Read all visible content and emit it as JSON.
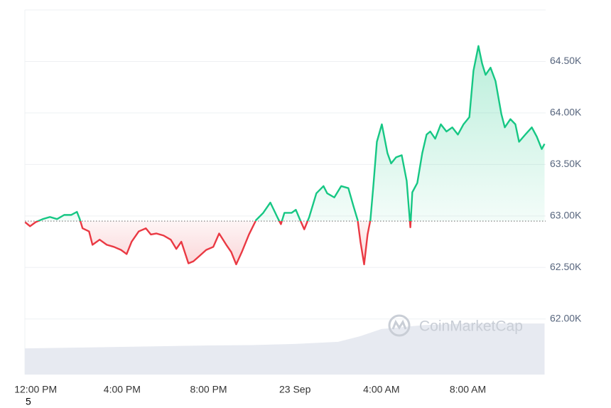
{
  "chart_data": {
    "type": "baseline_line",
    "x": [
      -0.49,
      -0.26,
      0,
      0.33,
      0.66,
      0.99,
      1.32,
      1.64,
      1.91,
      2.04,
      2.17,
      2.47,
      2.63,
      2.96,
      3.29,
      3.62,
      3.95,
      4.21,
      4.44,
      4.77,
      5.1,
      5.33,
      5.59,
      5.92,
      6.25,
      6.51,
      6.74,
      7.07,
      7.3,
      7.57,
      7.89,
      8.22,
      8.49,
      8.82,
      9.05,
      9.28,
      9.54,
      9.87,
      10.2,
      10.53,
      10.86,
      11.18,
      11.35,
      11.51,
      11.84,
      12.04,
      12.24,
      12.43,
      12.66,
      12.99,
      13.32,
      13.49,
      13.82,
      14.14,
      14.47,
      14.7,
      14.9,
      15.03,
      15.2,
      15.36,
      15.49,
      15.63,
      15.79,
      16.02,
      16.28,
      16.45,
      16.68,
      16.94,
      17.17,
      17.34,
      17.43,
      17.66,
      17.89,
      18.09,
      18.26,
      18.49,
      18.75,
      19.01,
      19.28,
      19.54,
      19.8,
      20.07,
      20.26,
      20.49,
      20.66,
      20.82,
      21.05,
      21.28,
      21.55,
      21.71,
      21.97,
      22.2,
      22.37,
      22.7,
      22.96,
      23.19,
      23.42,
      23.55
    ],
    "series": [
      {
        "values": [
          62940,
          62900,
          62940,
          62970,
          62990,
          62970,
          63010,
          63010,
          63040,
          62970,
          62880,
          62850,
          62720,
          62770,
          62720,
          62700,
          62670,
          62630,
          62750,
          62850,
          62880,
          62820,
          62830,
          62810,
          62770,
          62680,
          62750,
          62540,
          62560,
          62610,
          62670,
          62700,
          62830,
          62720,
          62650,
          62530,
          62650,
          62820,
          62960,
          63030,
          63130,
          62990,
          62920,
          63030,
          63030,
          63060,
          62960,
          62870,
          62990,
          63220,
          63290,
          63220,
          63180,
          63290,
          63270,
          63100,
          62960,
          62750,
          62530,
          62820,
          62960,
          63300,
          63720,
          63890,
          63610,
          63510,
          63570,
          63590,
          63340,
          62890,
          63230,
          63320,
          63610,
          63790,
          63820,
          63750,
          63890,
          63820,
          63860,
          63790,
          63890,
          63960,
          64410,
          64650,
          64480,
          64370,
          64440,
          64310,
          63990,
          63860,
          63940,
          63890,
          63720,
          63800,
          63860,
          63770,
          63650,
          63700
        ],
        "above_color": "#16c784",
        "below_color": "#ea3943"
      }
    ],
    "baseline": 62950,
    "volume": {
      "x": [
        -0.5,
        2,
        4,
        6,
        8,
        10,
        12,
        14,
        15,
        16,
        18,
        20,
        22,
        23.55
      ],
      "values": [
        7.2,
        7.4,
        7.6,
        7.8,
        8.0,
        8.1,
        8.4,
        9.0,
        10.5,
        12.5,
        13.6,
        14.0,
        14.0,
        14.0
      ],
      "lim": [
        0,
        100
      ],
      "color": "#e7eaf1"
    },
    "xlim": [
      -0.5,
      23.6
    ],
    "xticks": [
      {
        "value": 0,
        "label": "12:00 PM"
      },
      {
        "value": 4,
        "label": "4:00 PM"
      },
      {
        "value": 8,
        "label": "8:00 PM"
      },
      {
        "value": 12,
        "label": "23 Sep"
      },
      {
        "value": 16,
        "label": "4:00 AM"
      },
      {
        "value": 20,
        "label": "8:00 AM"
      }
    ],
    "ylim": [
      61460,
      65000
    ],
    "yticks": [
      {
        "value": 62000,
        "label": "62.00K"
      },
      {
        "value": 62500,
        "label": "62.50K"
      },
      {
        "value": 63000,
        "label": "63.00K"
      },
      {
        "value": 63500,
        "label": "63.50K"
      },
      {
        "value": 64000,
        "label": "64.00K"
      },
      {
        "value": 64500,
        "label": "64.50K"
      }
    ],
    "grid": true,
    "watermark": "CoinMarketCap",
    "footnote": "5"
  }
}
